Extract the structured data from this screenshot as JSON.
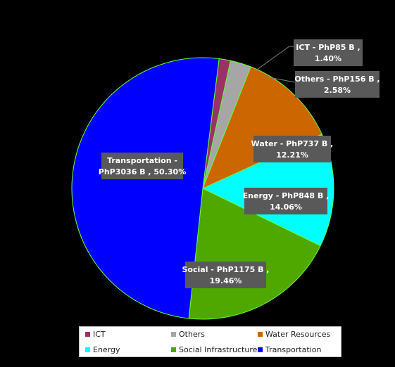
{
  "chart_data": {
    "type": "pie",
    "slices": [
      {
        "name": "ICT",
        "value": 85,
        "percent": 1.4,
        "label_line1": "ICT - PhP85 B ,",
        "label_line2": "1.40%",
        "color": "#993366"
      },
      {
        "name": "Others",
        "value": 156,
        "percent": 2.58,
        "label_line1": "Others - PhP156 B ,",
        "label_line2": "2.58%",
        "color": "#a6a6a6"
      },
      {
        "name": "Water Resources",
        "value": 737,
        "percent": 12.21,
        "label_line1": "Water - PhP737 B ,",
        "label_line2": "12.21%",
        "color": "#cc6600"
      },
      {
        "name": "Energy",
        "value": 848,
        "percent": 14.06,
        "label_line1": "Energy - PhP848 B ,",
        "label_line2": "14.06%",
        "color": "#00ffff"
      },
      {
        "name": "Social Infrastructure",
        "value": 1175,
        "percent": 19.46,
        "label_line1": "Social - PhP1175 B ,",
        "label_line2": "19.46%",
        "color": "#4ea800"
      },
      {
        "name": "Transportation",
        "value": 3036,
        "percent": 50.3,
        "label_line1": "Transportation -",
        "label_line2": "PhP3036 B , 50.30%",
        "color": "#0000ff"
      }
    ],
    "legend": [
      "ICT",
      "Others",
      "Water Resources",
      "Energy",
      "Social Infrastructure",
      "Transportation"
    ],
    "legend_placement": "bottom",
    "slice_border_color": "#66ff33",
    "background": "#000000"
  }
}
